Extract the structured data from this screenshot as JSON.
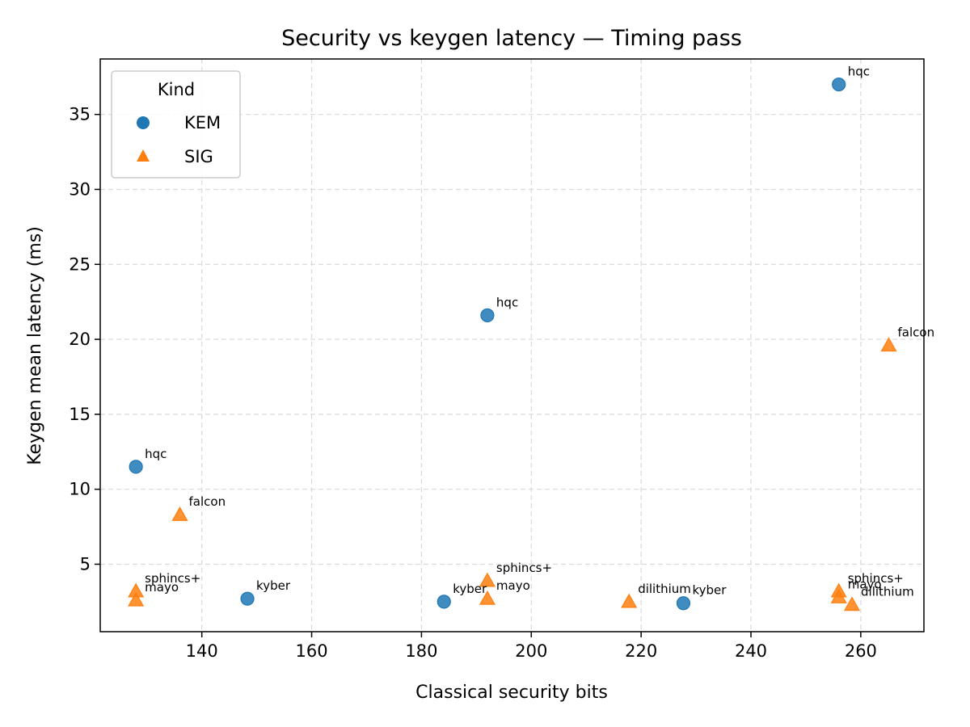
{
  "chart_data": {
    "type": "scatter",
    "title": "Security vs keygen latency — Timing pass",
    "xlabel": "Classical security bits",
    "ylabel": "Keygen mean latency (ms)",
    "xlim": [
      121.5,
      271.5
    ],
    "ylim": [
      0.5,
      38.7
    ],
    "xticks": [
      140,
      160,
      180,
      200,
      220,
      240,
      260
    ],
    "yticks": [
      5,
      10,
      15,
      20,
      25,
      30,
      35
    ],
    "grid": true,
    "legend": {
      "title": "Kind",
      "placement": "top-left"
    },
    "series": [
      {
        "name": "KEM",
        "marker": "circle",
        "color": "#1f77b4",
        "points": [
          {
            "x": 128,
            "y": 11.5,
            "label": "hqc"
          },
          {
            "x": 148.3,
            "y": 2.7,
            "label": "kyber"
          },
          {
            "x": 184.1,
            "y": 2.5,
            "label": "kyber"
          },
          {
            "x": 192,
            "y": 21.6,
            "label": "hqc"
          },
          {
            "x": 227.7,
            "y": 2.4,
            "label": "kyber"
          },
          {
            "x": 256,
            "y": 37.0,
            "label": "hqc"
          }
        ]
      },
      {
        "name": "SIG",
        "marker": "triangle",
        "color": "#ff7f0e",
        "points": [
          {
            "x": 128,
            "y": 3.2,
            "label": "sphincs+"
          },
          {
            "x": 128,
            "y": 2.6,
            "label": "mayo"
          },
          {
            "x": 136,
            "y": 8.3,
            "label": "falcon"
          },
          {
            "x": 192,
            "y": 3.9,
            "label": "sphincs+"
          },
          {
            "x": 192,
            "y": 2.7,
            "label": "mayo"
          },
          {
            "x": 217.8,
            "y": 2.5,
            "label": "dilithium"
          },
          {
            "x": 256,
            "y": 3.2,
            "label": "sphincs+"
          },
          {
            "x": 256,
            "y": 2.8,
            "label": "mayo"
          },
          {
            "x": 258.4,
            "y": 2.3,
            "label": "dilithium"
          },
          {
            "x": 265.1,
            "y": 19.6,
            "label": "falcon"
          }
        ]
      }
    ]
  }
}
